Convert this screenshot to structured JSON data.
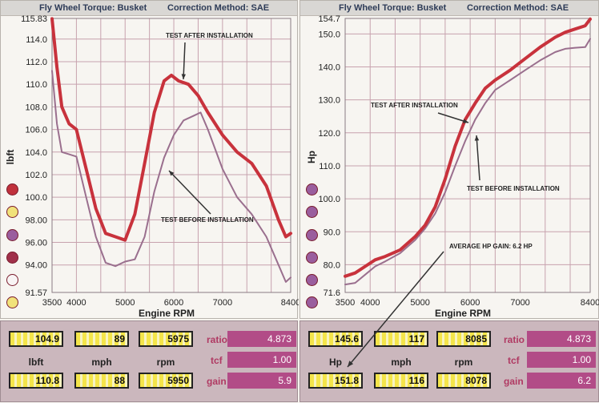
{
  "left_panel": {
    "title_parts": [
      "Fly Wheel Torque: Busket",
      "Correction Method: SAE"
    ]
  },
  "right_panel": {
    "title_parts": [
      "Fly Wheel Torque: Busket",
      "Correction Method: SAE"
    ]
  },
  "chart_data": [
    {
      "type": "line",
      "xlabel": "Engine RPM",
      "ylabel": "lbft",
      "xlim": [
        3500,
        8400
      ],
      "ylim": [
        91.57,
        115.83
      ],
      "x_ticks": [
        3500,
        4000,
        5000,
        6000,
        7000,
        8400
      ],
      "y_ticks": [
        91.57,
        94.0,
        96.0,
        98.0,
        100.0,
        102.0,
        104.0,
        106.0,
        108.0,
        110.0,
        112.0,
        114.0,
        115.83
      ],
      "y_tick_labels": [
        "91.57",
        "94.00",
        "96.00",
        "98.00",
        "100.0",
        "102.0",
        "104.0",
        "106.0",
        "108.0",
        "110.0",
        "112.0",
        "114.0",
        "115.83"
      ],
      "grid": true,
      "series": [
        {
          "color": "#c8323c",
          "x": [
            3500,
            3600,
            3700,
            3850,
            4000,
            4200,
            4400,
            4600,
            4800,
            5000,
            5200,
            5400,
            5600,
            5800,
            5950,
            6100,
            6300,
            6500,
            6700,
            7000,
            7300,
            7600,
            7900,
            8150,
            8300,
            8400
          ],
          "y": [
            115.8,
            111.5,
            108.0,
            106.5,
            106.0,
            102.5,
            99.0,
            96.8,
            96.5,
            96.2,
            98.5,
            103.0,
            107.5,
            110.3,
            110.8,
            110.3,
            110.0,
            109.0,
            107.5,
            105.5,
            104.0,
            103.0,
            101.0,
            98.0,
            96.5,
            96.8
          ]
        },
        {
          "color": "#9a6f8e",
          "x": [
            3500,
            3600,
            3700,
            3850,
            4000,
            4200,
            4400,
            4600,
            4800,
            5000,
            5200,
            5400,
            5600,
            5800,
            6000,
            6200,
            6400,
            6550,
            6700,
            7000,
            7300,
            7600,
            7900,
            8150,
            8300,
            8400
          ],
          "y": [
            111.2,
            106.5,
            104.0,
            103.8,
            103.6,
            100.0,
            96.5,
            94.2,
            93.9,
            94.3,
            94.5,
            96.5,
            100.5,
            103.5,
            105.5,
            106.8,
            107.2,
            107.5,
            106.0,
            102.5,
            100.0,
            98.5,
            96.5,
            94.0,
            92.5,
            92.9
          ]
        }
      ],
      "annotations": [
        "TEST AFTER INSTALLATION",
        "TEST BEFORE INSTALLATION"
      ]
    },
    {
      "type": "line",
      "xlabel": "Engine RPM",
      "ylabel": "Hp",
      "xlim": [
        3500,
        8400
      ],
      "ylim": [
        71.6,
        154.7
      ],
      "x_ticks": [
        3500,
        4000,
        5000,
        6000,
        7000,
        8400
      ],
      "y_ticks": [
        71.6,
        80.0,
        90.0,
        100.0,
        110.0,
        120.0,
        130.0,
        140.0,
        150.0,
        154.7
      ],
      "y_tick_labels": [
        "71.6",
        "80.0",
        "90.0",
        "100.0",
        "110.0",
        "120.0",
        "130.0",
        "140.0",
        "150.0",
        "154.7"
      ],
      "grid": true,
      "series": [
        {
          "color": "#c8323c",
          "x": [
            3500,
            3700,
            3900,
            4100,
            4300,
            4600,
            4900,
            5100,
            5300,
            5500,
            5700,
            5900,
            6100,
            6300,
            6500,
            6800,
            7100,
            7400,
            7700,
            7900,
            8100,
            8300,
            8400
          ],
          "y": [
            76.5,
            77.5,
            79.5,
            81.5,
            82.5,
            84.5,
            88.5,
            92.0,
            97.5,
            106.0,
            116.0,
            124.0,
            129.0,
            133.5,
            136.0,
            139.0,
            142.5,
            146.0,
            149.0,
            150.5,
            151.5,
            152.5,
            154.5
          ]
        },
        {
          "color": "#9a6f8e",
          "x": [
            3500,
            3700,
            3900,
            4100,
            4300,
            4600,
            4900,
            5100,
            5300,
            5500,
            5700,
            5900,
            6100,
            6300,
            6500,
            6800,
            7100,
            7400,
            7700,
            7900,
            8100,
            8300,
            8400
          ],
          "y": [
            74.0,
            74.5,
            77.0,
            79.5,
            81.0,
            83.5,
            87.5,
            91.0,
            95.5,
            102.0,
            110.0,
            117.5,
            124.0,
            129.0,
            133.0,
            136.0,
            139.0,
            142.0,
            144.5,
            145.5,
            145.8,
            146.0,
            148.5
          ]
        }
      ],
      "annotations": [
        "TEST AFTER INSTALLATION",
        "TEST BEFORE INSTALLATION",
        "AVERAGE HP GAIN: 6.2 HP"
      ]
    }
  ],
  "left_dots": [
    "#c0313c",
    "#f1e27a",
    "#9a5e9e",
    "#a0304a",
    "#f8f4f4",
    "#f1e27a"
  ],
  "right_dots": [
    "#9a5e9e",
    "#9a5e9e",
    "#9a5e9e",
    "#9a5e9e",
    "#9a5e9e",
    "#9a5e9e"
  ],
  "left_readouts": {
    "row1": [
      "104.9",
      "89",
      "5975"
    ],
    "captions": [
      "lbft",
      "mph",
      "rpm"
    ],
    "row2": [
      "110.8",
      "88",
      "5950"
    ]
  },
  "right_readouts": {
    "row1": [
      "145.6",
      "117",
      "8085"
    ],
    "captions": [
      "Hp",
      "mph",
      "rpm"
    ],
    "row2": [
      "151.8",
      "116",
      "8078"
    ]
  },
  "left_factors": [
    {
      "label": "ratio",
      "value": "4.873"
    },
    {
      "label": "tcf",
      "value": "1.00"
    },
    {
      "label": "gain",
      "value": "5.9"
    }
  ],
  "right_factors": [
    {
      "label": "ratio",
      "value": "4.873"
    },
    {
      "label": "tcf",
      "value": "1.00"
    },
    {
      "label": "gain",
      "value": "6.2"
    }
  ]
}
